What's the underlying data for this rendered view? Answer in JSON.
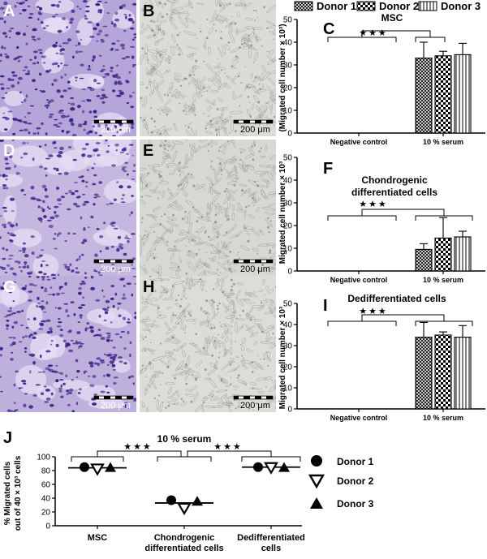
{
  "micro": [
    {
      "id": "A",
      "label": "A",
      "scale": "200 μm",
      "stain": "violet",
      "bg": "#b4a6d8",
      "cell": "#3a1f86",
      "dense": 0.55
    },
    {
      "id": "B",
      "label": "B",
      "scale": "200 μm",
      "stain": "gray",
      "bg": "#dadcd8",
      "cell": "#8e918c",
      "dense": 0.35
    },
    {
      "id": "D",
      "label": "D",
      "scale": "200 μm",
      "stain": "violet",
      "bg": "#c4b8e0",
      "cell": "#44288e",
      "dense": 0.45
    },
    {
      "id": "E",
      "label": "E",
      "scale": "200 μm",
      "stain": "gray",
      "bg": "#d6d8d4",
      "cell": "#8b8e88",
      "dense": 0.35
    },
    {
      "id": "G",
      "label": "G",
      "scale": "200 μm",
      "stain": "violet",
      "bg": "#bdb0dc",
      "cell": "#3e2389",
      "dense": 0.5
    },
    {
      "id": "H",
      "label": "H",
      "scale": "200 μm",
      "stain": "gray",
      "bg": "#dcdcd8",
      "cell": "#8c8c88",
      "dense": 0.35
    }
  ],
  "legend": {
    "items": [
      "Donor 1",
      "Donor 2",
      "Donor 3"
    ],
    "patterns": [
      "crosshatch",
      "checker",
      "vlines"
    ]
  },
  "panel_c": {
    "label": "C",
    "title": "MSC",
    "ylabel": "(Migrated cell number × 10³)",
    "signif": "★★★"
  },
  "panel_f": {
    "label": "F",
    "title_line1": "Chondrogenic",
    "title_line2": "differentiated cells",
    "ylabel": "Migrated cell number × 10³",
    "signif": "★★★"
  },
  "panel_i": {
    "label": "I",
    "title": "Dedifferentiated cells",
    "ylabel": "Migrated cell number × 10³",
    "signif": "★★★"
  },
  "panel_j": {
    "label": "J",
    "title": "10 % serum",
    "ylabel_line1": "% Migrated cells",
    "ylabel_line2": "out of 40 × 10³ cells",
    "signif_left": "★★★",
    "signif_right": "★★★",
    "legend": [
      {
        "name": "Donor 1",
        "marker": "circle"
      },
      {
        "name": "Donor 2",
        "marker": "triangle-down"
      },
      {
        "name": "Donor 3",
        "marker": "triangle-up"
      }
    ]
  },
  "colors": {
    "violet_stain": "#3a1f86",
    "axis": "#000000",
    "bar_fill": "#ffffff"
  },
  "chart_data": [
    {
      "panel": "C",
      "type": "bar",
      "categories": [
        "Negative control",
        "10 % serum"
      ],
      "series": [
        {
          "name": "Donor 1",
          "values": [
            0,
            33
          ],
          "error": [
            0,
            7
          ]
        },
        {
          "name": "Donor 2",
          "values": [
            0,
            34
          ],
          "error": [
            0,
            2
          ]
        },
        {
          "name": "Donor 3",
          "values": [
            0,
            34.5
          ],
          "error": [
            0,
            5
          ]
        }
      ],
      "title": "MSC",
      "ylabel": "(Migrated cell number × 10³)",
      "ylim": [
        0,
        50
      ],
      "yticks": [
        0,
        10,
        20,
        30,
        40,
        50
      ],
      "grid": false
    },
    {
      "panel": "F",
      "type": "bar",
      "categories": [
        "Negative control",
        "10 % serum"
      ],
      "series": [
        {
          "name": "Donor 1",
          "values": [
            0,
            9.5
          ],
          "error": [
            0,
            2.5
          ]
        },
        {
          "name": "Donor 2",
          "values": [
            0,
            14.5
          ],
          "error": [
            0,
            9
          ]
        },
        {
          "name": "Donor 3",
          "values": [
            0,
            15
          ],
          "error": [
            0,
            2.5
          ]
        }
      ],
      "title": "Chondrogenic differentiated cells",
      "ylabel": "Migrated cell number × 10³",
      "ylim": [
        0,
        50
      ],
      "yticks": [
        0,
        10,
        20,
        30,
        40,
        50
      ],
      "grid": false
    },
    {
      "panel": "I",
      "type": "bar",
      "categories": [
        "Negative control",
        "10 % serum"
      ],
      "series": [
        {
          "name": "Donor 1",
          "values": [
            0,
            34
          ],
          "error": [
            0,
            7
          ]
        },
        {
          "name": "Donor 2",
          "values": [
            0,
            35
          ],
          "error": [
            0,
            1.5
          ]
        },
        {
          "name": "Donor 3",
          "values": [
            0,
            34
          ],
          "error": [
            0,
            5.5
          ]
        }
      ],
      "title": "Dedifferentiated cells",
      "ylabel": "Migrated cell number × 10³",
      "ylim": [
        0,
        50
      ],
      "yticks": [
        0,
        10,
        20,
        30,
        40,
        50
      ],
      "grid": false
    },
    {
      "panel": "J",
      "type": "scatter",
      "categories": [
        "MSC",
        "Chondrogenic differentiated cells",
        "Dedifferentiated cells"
      ],
      "category_labels": [
        [
          "MSC"
        ],
        [
          "Chondrogenic",
          "differentiated cells"
        ],
        [
          "Dedifferentiated",
          "cells"
        ]
      ],
      "series": [
        {
          "name": "Donor 1",
          "values": [
            85,
            37,
            85
          ]
        },
        {
          "name": "Donor 2",
          "values": [
            83,
            26,
            85
          ]
        },
        {
          "name": "Donor 3",
          "values": [
            84,
            35,
            84
          ]
        }
      ],
      "means": [
        84,
        33,
        85
      ],
      "title": "10 % serum",
      "ylabel": "% Migrated cells out of 40 × 10³ cells",
      "ylim": [
        0,
        100
      ],
      "yticks": [
        0,
        20,
        40,
        60,
        80,
        100
      ],
      "grid": false
    }
  ]
}
